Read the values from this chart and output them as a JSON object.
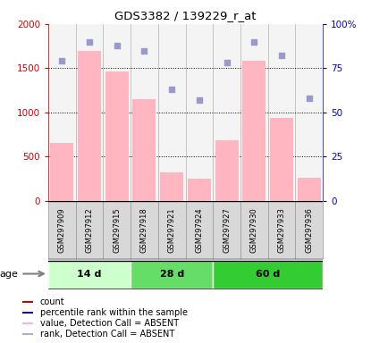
{
  "title": "GDS3382 / 139229_r_at",
  "samples": [
    "GSM297909",
    "GSM297912",
    "GSM297915",
    "GSM297918",
    "GSM297921",
    "GSM297924",
    "GSM297927",
    "GSM297930",
    "GSM297933",
    "GSM297936"
  ],
  "bar_values": [
    650,
    1700,
    1460,
    1150,
    320,
    250,
    680,
    1580,
    940,
    260
  ],
  "dot_values": [
    79,
    90,
    88,
    85,
    63,
    57,
    78,
    90,
    82,
    58
  ],
  "age_groups": [
    {
      "label": "14 d",
      "start": 0,
      "end": 3,
      "color_light": "#CCFFCC",
      "color_dark": "#88EE88"
    },
    {
      "label": "28 d",
      "start": 3,
      "end": 6,
      "color_light": "#66DD66",
      "color_dark": "#44CC44"
    },
    {
      "label": "60 d",
      "start": 6,
      "end": 10,
      "color_light": "#33CC33",
      "color_dark": "#22BB22"
    }
  ],
  "ylim_left": [
    0,
    2000
  ],
  "ylim_right": [
    0,
    100
  ],
  "yticks_left": [
    0,
    500,
    1000,
    1500,
    2000
  ],
  "yticks_right": [
    0,
    25,
    50,
    75,
    100
  ],
  "bar_color": "#FFB6C1",
  "dot_color": "#9999CC",
  "legend_colors": [
    "#CC0000",
    "#0000CC",
    "#FFB6C1",
    "#AAAADD"
  ],
  "legend_labels": [
    "count",
    "percentile rank within the sample",
    "value, Detection Call = ABSENT",
    "rank, Detection Call = ABSENT"
  ],
  "left_axis_color": "#CC0000",
  "right_axis_color": "#0000BB",
  "age_label": "age",
  "sample_box_color": "#D8D8D8",
  "sample_box_border": "#999999"
}
